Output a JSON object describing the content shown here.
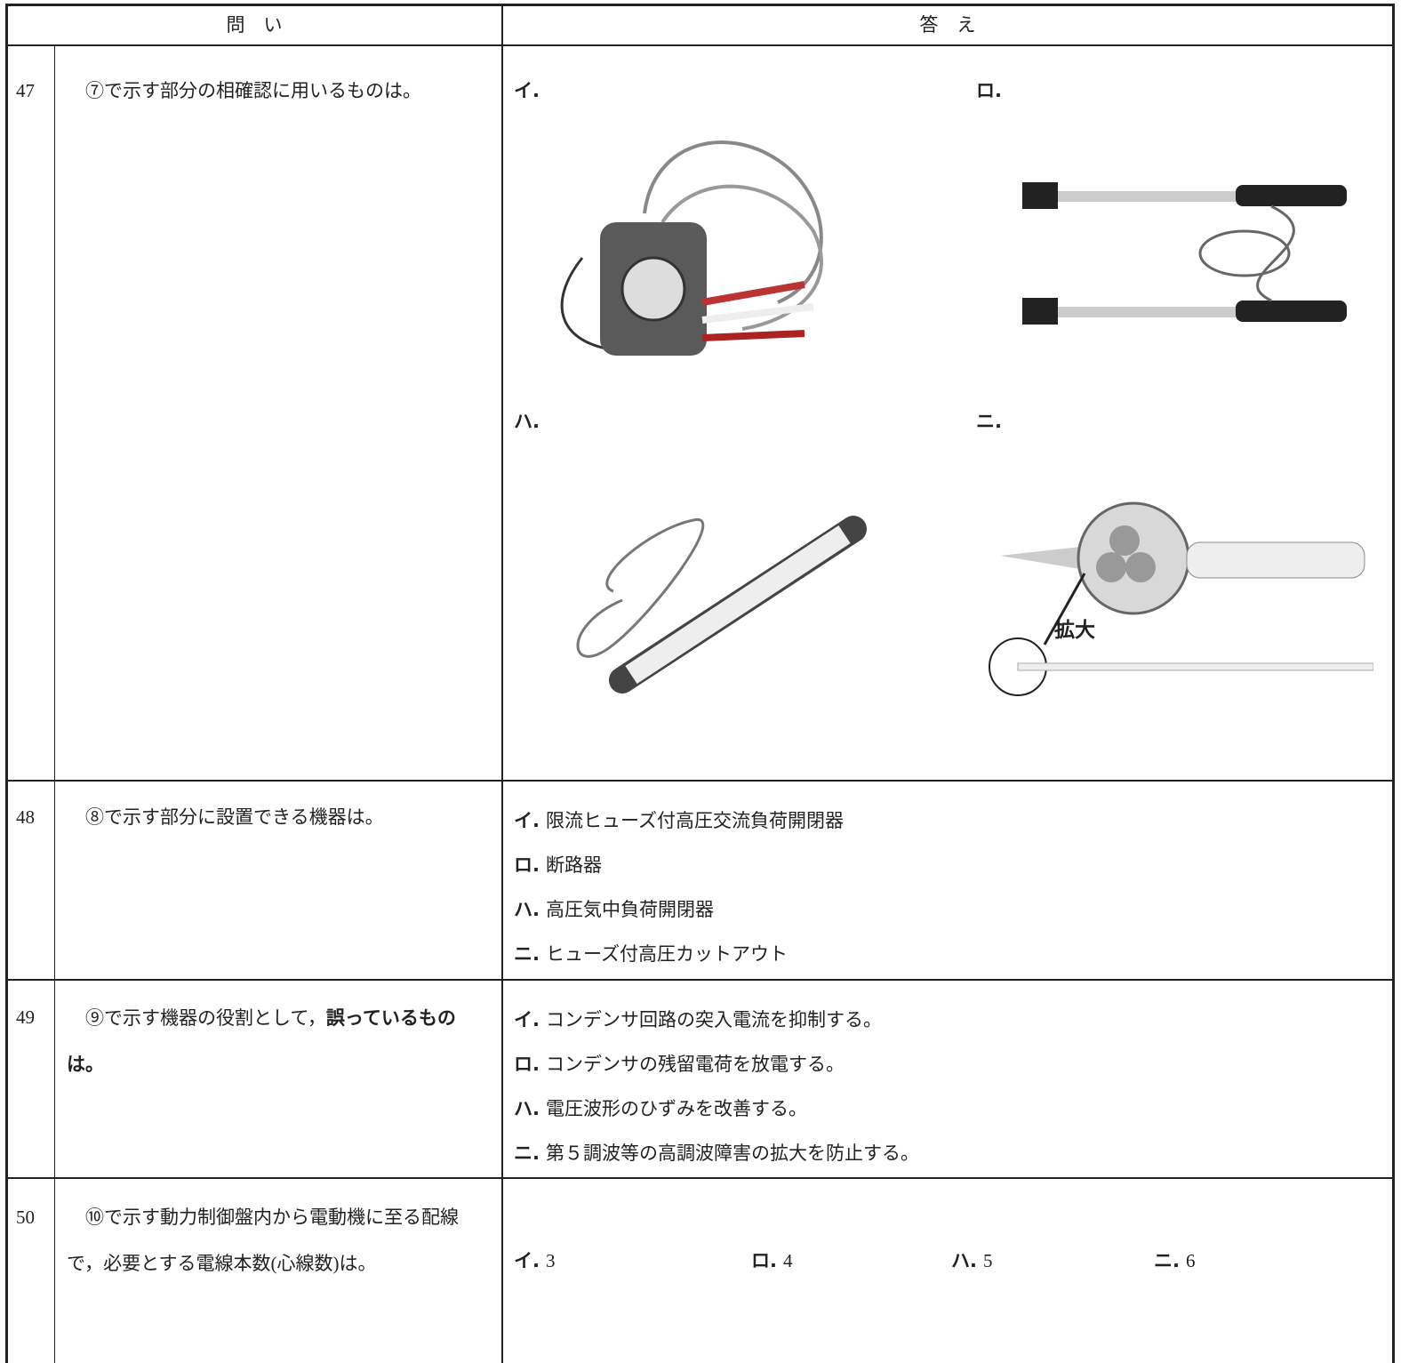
{
  "header": {
    "question_heading": "問　い",
    "answer_heading": "答　え"
  },
  "rows": [
    {
      "number": "47",
      "question": "⑦で示す部分の相確認に用いるものは。",
      "options": [
        {
          "label": "イ."
        },
        {
          "label": "ロ."
        },
        {
          "label": "ハ."
        },
        {
          "label": "ニ.",
          "annotation": "拡大"
        }
      ]
    },
    {
      "number": "48",
      "question": "⑧で示す部分に設置できる機器は。",
      "options": [
        {
          "label": "イ.",
          "text": "限流ヒューズ付高圧交流負荷開閉器"
        },
        {
          "label": "ロ.",
          "text": "断路器"
        },
        {
          "label": "ハ.",
          "text": "高圧気中負荷開閉器"
        },
        {
          "label": "ニ.",
          "text": "ヒューズ付高圧カットアウト"
        }
      ]
    },
    {
      "number": "49",
      "question": "⑨で示す機器の役割として，",
      "question_emphasis": "誤っているものは。",
      "options": [
        {
          "label": "イ.",
          "text": "コンデンサ回路の突入電流を抑制する。"
        },
        {
          "label": "ロ.",
          "text": "コンデンサの残留電荷を放電する。"
        },
        {
          "label": "ハ.",
          "text": "電圧波形のひずみを改善する。"
        },
        {
          "label": "ニ.",
          "text": "第５調波等の高調波障害の拡大を防止する。"
        }
      ]
    },
    {
      "number": "50",
      "question": "⑩で示す動力制御盤内から電動機に至る配線で，必要とする電線本数(心線数)は。",
      "options": [
        {
          "label": "イ.",
          "text": "3"
        },
        {
          "label": "ロ.",
          "text": "4"
        },
        {
          "label": "ハ.",
          "text": "5"
        },
        {
          "label": "ニ.",
          "text": "6"
        }
      ]
    }
  ]
}
